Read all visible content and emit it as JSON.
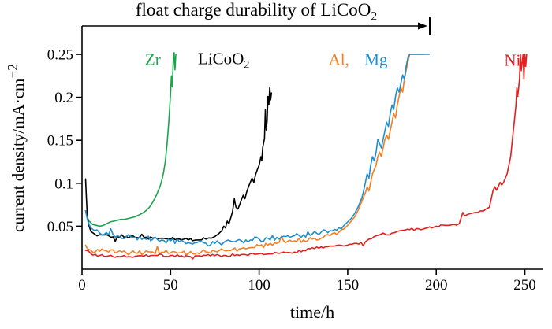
{
  "chart_data": {
    "type": "line",
    "title": {
      "text": "float charge durability of LiCoO",
      "sub": "2"
    },
    "xlabel": "time/h",
    "ylabel": {
      "text": "current density/mA·cm",
      "sup": "−2"
    },
    "xlim": [
      0,
      260
    ],
    "ylim": [
      0,
      0.272
    ],
    "x_ticks": [
      0,
      50,
      100,
      150,
      200,
      250
    ],
    "x_tick_labels": [
      "0",
      "50",
      "100",
      "150",
      "200",
      "250"
    ],
    "y_ticks": [
      0.05,
      0.1,
      0.15,
      0.2,
      0.25
    ],
    "y_tick_labels": [
      "0.05",
      "0.1",
      "0.15",
      "0.2",
      "0.25"
    ],
    "grid": false,
    "legend_position": "inline-annotations",
    "arrow": {
      "x_start": 0,
      "x_end": 195
    },
    "annotations": [
      {
        "text": "Zr",
        "sub": "",
        "color": "#1aa54d",
        "x": 40,
        "y": 0.244
      },
      {
        "text": "LiCoO",
        "sub": "2",
        "color": "#000000",
        "x": 80,
        "y": 0.243
      },
      {
        "text": "Al,",
        "sub": "",
        "color": "#f57e20",
        "x": 145,
        "y": 0.244
      },
      {
        "text": "Mg",
        "sub": "",
        "color": "#1e8fcd",
        "x": 166,
        "y": 0.244
      },
      {
        "text": "Ni",
        "sub": "",
        "color": "#e3201f",
        "x": 243,
        "y": 0.243
      }
    ],
    "series": [
      {
        "name": "Zr",
        "color": "#1aa54d",
        "jitter": 0.0025,
        "points": [
          [
            2,
            0.068
          ],
          [
            3,
            0.06
          ],
          [
            4,
            0.056
          ],
          [
            5,
            0.054
          ],
          [
            6,
            0.052
          ],
          [
            8,
            0.051
          ],
          [
            10,
            0.05
          ],
          [
            12,
            0.051
          ],
          [
            14,
            0.053
          ],
          [
            16,
            0.055
          ],
          [
            18,
            0.056
          ],
          [
            20,
            0.057
          ],
          [
            22,
            0.058
          ],
          [
            24,
            0.058
          ],
          [
            26,
            0.059
          ],
          [
            28,
            0.06
          ],
          [
            30,
            0.061
          ],
          [
            32,
            0.063
          ],
          [
            34,
            0.065
          ],
          [
            36,
            0.068
          ],
          [
            38,
            0.072
          ],
          [
            40,
            0.078
          ],
          [
            42,
            0.086
          ],
          [
            44,
            0.096
          ],
          [
            45,
            0.103
          ],
          [
            46,
            0.112
          ],
          [
            47,
            0.125
          ],
          [
            48,
            0.145
          ],
          [
            49,
            0.172
          ],
          [
            50,
            0.205
          ],
          [
            50.5,
            0.225
          ],
          [
            51,
            0.212
          ],
          [
            51.5,
            0.242
          ],
          [
            52,
            0.252
          ],
          [
            52.5,
            0.232
          ],
          [
            53,
            0.25
          ]
        ]
      },
      {
        "name": "LiCoO2",
        "color": "#000000",
        "jitter": 0.002,
        "points": [
          [
            2,
            0.105
          ],
          [
            2.5,
            0.082
          ],
          [
            3,
            0.062
          ],
          [
            4,
            0.05
          ],
          [
            5,
            0.044
          ],
          [
            7,
            0.041
          ],
          [
            10,
            0.04
          ],
          [
            15,
            0.039
          ],
          [
            20,
            0.038
          ],
          [
            25,
            0.038
          ],
          [
            30,
            0.037
          ],
          [
            35,
            0.037
          ],
          [
            40,
            0.036
          ],
          [
            45,
            0.036
          ],
          [
            50,
            0.035
          ],
          [
            55,
            0.035
          ],
          [
            60,
            0.034
          ],
          [
            65,
            0.034
          ],
          [
            70,
            0.035
          ],
          [
            73,
            0.036
          ],
          [
            75,
            0.038
          ],
          [
            77,
            0.041
          ],
          [
            79,
            0.045
          ],
          [
            80,
            0.05
          ],
          [
            81,
            0.048
          ],
          [
            82,
            0.056
          ],
          [
            83,
            0.053
          ],
          [
            84,
            0.06
          ],
          [
            85,
            0.067
          ],
          [
            86,
            0.082
          ],
          [
            86.5,
            0.076
          ],
          [
            87,
            0.072
          ],
          [
            88,
            0.07
          ],
          [
            89,
            0.075
          ],
          [
            90,
            0.081
          ],
          [
            91,
            0.086
          ],
          [
            92,
            0.082
          ],
          [
            93,
            0.09
          ],
          [
            94,
            0.096
          ],
          [
            95,
            0.101
          ],
          [
            96,
            0.106
          ],
          [
            97,
            0.101
          ],
          [
            98,
            0.11
          ],
          [
            99,
            0.116
          ],
          [
            100,
            0.121
          ],
          [
            101,
            0.131
          ],
          [
            101.5,
            0.126
          ],
          [
            102,
            0.141
          ],
          [
            103,
            0.152
          ],
          [
            103.5,
            0.186
          ],
          [
            104,
            0.162
          ],
          [
            104.5,
            0.172
          ],
          [
            105,
            0.201
          ],
          [
            105.5,
            0.192
          ],
          [
            106,
            0.212
          ],
          [
            106.5,
            0.197
          ],
          [
            107,
            0.205
          ]
        ]
      },
      {
        "name": "Al",
        "color": "#f57e20",
        "jitter": 0.0028,
        "points": [
          [
            2,
            0.028
          ],
          [
            3,
            0.024
          ],
          [
            5,
            0.022
          ],
          [
            10,
            0.021
          ],
          [
            15,
            0.02
          ],
          [
            20,
            0.02
          ],
          [
            25,
            0.019
          ],
          [
            30,
            0.019
          ],
          [
            35,
            0.019
          ],
          [
            40,
            0.02
          ],
          [
            45,
            0.02
          ],
          [
            50,
            0.019
          ],
          [
            55,
            0.019
          ],
          [
            60,
            0.018
          ],
          [
            65,
            0.019
          ],
          [
            70,
            0.02
          ],
          [
            75,
            0.021
          ],
          [
            80,
            0.022
          ],
          [
            85,
            0.023
          ],
          [
            90,
            0.024
          ],
          [
            95,
            0.025
          ],
          [
            100,
            0.027
          ],
          [
            105,
            0.028
          ],
          [
            110,
            0.03
          ],
          [
            115,
            0.031
          ],
          [
            120,
            0.033
          ],
          [
            125,
            0.034
          ],
          [
            130,
            0.035
          ],
          [
            135,
            0.036
          ],
          [
            140,
            0.039
          ],
          [
            145,
            0.043
          ],
          [
            148,
            0.047
          ],
          [
            150,
            0.051
          ],
          [
            152,
            0.056
          ],
          [
            154,
            0.061
          ],
          [
            156,
            0.069
          ],
          [
            158,
            0.079
          ],
          [
            160,
            0.089
          ],
          [
            161,
            0.096
          ],
          [
            162,
            0.091
          ],
          [
            163,
            0.101
          ],
          [
            164,
            0.111
          ],
          [
            165,
            0.116
          ],
          [
            166,
            0.121
          ],
          [
            167,
            0.131
          ],
          [
            168,
            0.136
          ],
          [
            169,
            0.131
          ],
          [
            170,
            0.141
          ],
          [
            171,
            0.151
          ],
          [
            172,
            0.156
          ],
          [
            173,
            0.151
          ],
          [
            174,
            0.161
          ],
          [
            175,
            0.171
          ],
          [
            176,
            0.181
          ],
          [
            177,
            0.176
          ],
          [
            178,
            0.191
          ],
          [
            179,
            0.201
          ],
          [
            180,
            0.211
          ],
          [
            181,
            0.206
          ],
          [
            182,
            0.221
          ],
          [
            183,
            0.231
          ],
          [
            184,
            0.241
          ],
          [
            185,
            0.25
          ],
          [
            188,
            0.25
          ],
          [
            190,
            0.25
          ],
          [
            193,
            0.25
          ]
        ]
      },
      {
        "name": "Mg",
        "color": "#1e8fcd",
        "jitter": 0.003,
        "points": [
          [
            2,
            0.068
          ],
          [
            3,
            0.058
          ],
          [
            4,
            0.052
          ],
          [
            5,
            0.048
          ],
          [
            7,
            0.045
          ],
          [
            10,
            0.042
          ],
          [
            15,
            0.04
          ],
          [
            20,
            0.039
          ],
          [
            25,
            0.038
          ],
          [
            30,
            0.037
          ],
          [
            35,
            0.036
          ],
          [
            40,
            0.035
          ],
          [
            45,
            0.034
          ],
          [
            50,
            0.033
          ],
          [
            55,
            0.032
          ],
          [
            60,
            0.031
          ],
          [
            65,
            0.031
          ],
          [
            70,
            0.03
          ],
          [
            75,
            0.03
          ],
          [
            80,
            0.031
          ],
          [
            85,
            0.032
          ],
          [
            90,
            0.033
          ],
          [
            95,
            0.034
          ],
          [
            100,
            0.035
          ],
          [
            105,
            0.036
          ],
          [
            110,
            0.037
          ],
          [
            115,
            0.038
          ],
          [
            120,
            0.039
          ],
          [
            125,
            0.04
          ],
          [
            130,
            0.041
          ],
          [
            135,
            0.043
          ],
          [
            140,
            0.045
          ],
          [
            145,
            0.048
          ],
          [
            148,
            0.051
          ],
          [
            150,
            0.055
          ],
          [
            152,
            0.059
          ],
          [
            154,
            0.065
          ],
          [
            156,
            0.073
          ],
          [
            158,
            0.083
          ],
          [
            159,
            0.091
          ],
          [
            160,
            0.101
          ],
          [
            161,
            0.111
          ],
          [
            162,
            0.106
          ],
          [
            163,
            0.121
          ],
          [
            164,
            0.131
          ],
          [
            165,
            0.126
          ],
          [
            166,
            0.136
          ],
          [
            167,
            0.151
          ],
          [
            168,
            0.146
          ],
          [
            169,
            0.141
          ],
          [
            170,
            0.151
          ],
          [
            171,
            0.161
          ],
          [
            172,
            0.171
          ],
          [
            173,
            0.166
          ],
          [
            174,
            0.181
          ],
          [
            175,
            0.191
          ],
          [
            176,
            0.186
          ],
          [
            177,
            0.201
          ],
          [
            178,
            0.211
          ],
          [
            179,
            0.206
          ],
          [
            180,
            0.216
          ],
          [
            181,
            0.226
          ],
          [
            182,
            0.221
          ],
          [
            183,
            0.236
          ],
          [
            184,
            0.246
          ],
          [
            185,
            0.25
          ],
          [
            187,
            0.25
          ],
          [
            190,
            0.25
          ],
          [
            193,
            0.25
          ],
          [
            196,
            0.25
          ]
        ]
      },
      {
        "name": "Ni",
        "color": "#e3201f",
        "jitter": 0.0015,
        "points": [
          [
            2,
            0.022
          ],
          [
            5,
            0.018
          ],
          [
            10,
            0.016
          ],
          [
            20,
            0.015
          ],
          [
            30,
            0.015
          ],
          [
            40,
            0.016
          ],
          [
            50,
            0.016
          ],
          [
            60,
            0.015
          ],
          [
            70,
            0.016
          ],
          [
            80,
            0.016
          ],
          [
            90,
            0.017
          ],
          [
            100,
            0.018
          ],
          [
            110,
            0.019
          ],
          [
            120,
            0.02
          ],
          [
            125,
            0.022
          ],
          [
            130,
            0.025
          ],
          [
            135,
            0.026
          ],
          [
            140,
            0.027
          ],
          [
            145,
            0.028
          ],
          [
            150,
            0.028
          ],
          [
            155,
            0.03
          ],
          [
            160,
            0.032
          ],
          [
            162,
            0.035
          ],
          [
            165,
            0.038
          ],
          [
            168,
            0.04
          ],
          [
            170,
            0.042
          ],
          [
            172,
            0.04
          ],
          [
            175,
            0.042
          ],
          [
            178,
            0.044
          ],
          [
            180,
            0.045
          ],
          [
            185,
            0.046
          ],
          [
            190,
            0.047
          ],
          [
            195,
            0.048
          ],
          [
            200,
            0.05
          ],
          [
            205,
            0.051
          ],
          [
            210,
            0.052
          ],
          [
            213,
            0.053
          ],
          [
            215,
            0.066
          ],
          [
            216,
            0.062
          ],
          [
            218,
            0.064
          ],
          [
            220,
            0.065
          ],
          [
            222,
            0.066
          ],
          [
            225,
            0.068
          ],
          [
            228,
            0.07
          ],
          [
            230,
            0.072
          ],
          [
            232,
            0.091
          ],
          [
            233,
            0.096
          ],
          [
            234,
            0.092
          ],
          [
            235,
            0.096
          ],
          [
            236,
            0.101
          ],
          [
            237,
            0.098
          ],
          [
            238,
            0.101
          ],
          [
            239,
            0.106
          ],
          [
            240,
            0.111
          ],
          [
            241,
            0.121
          ],
          [
            242,
            0.131
          ],
          [
            243,
            0.151
          ],
          [
            244,
            0.171
          ],
          [
            245,
            0.191
          ],
          [
            245.5,
            0.211
          ],
          [
            246,
            0.201
          ],
          [
            247,
            0.221
          ],
          [
            247.5,
            0.25
          ],
          [
            248,
            0.231
          ],
          [
            248.5,
            0.241
          ],
          [
            249,
            0.25
          ],
          [
            249.5,
            0.221
          ],
          [
            250,
            0.25
          ],
          [
            250.5,
            0.236
          ],
          [
            251,
            0.25
          ]
        ]
      }
    ]
  }
}
